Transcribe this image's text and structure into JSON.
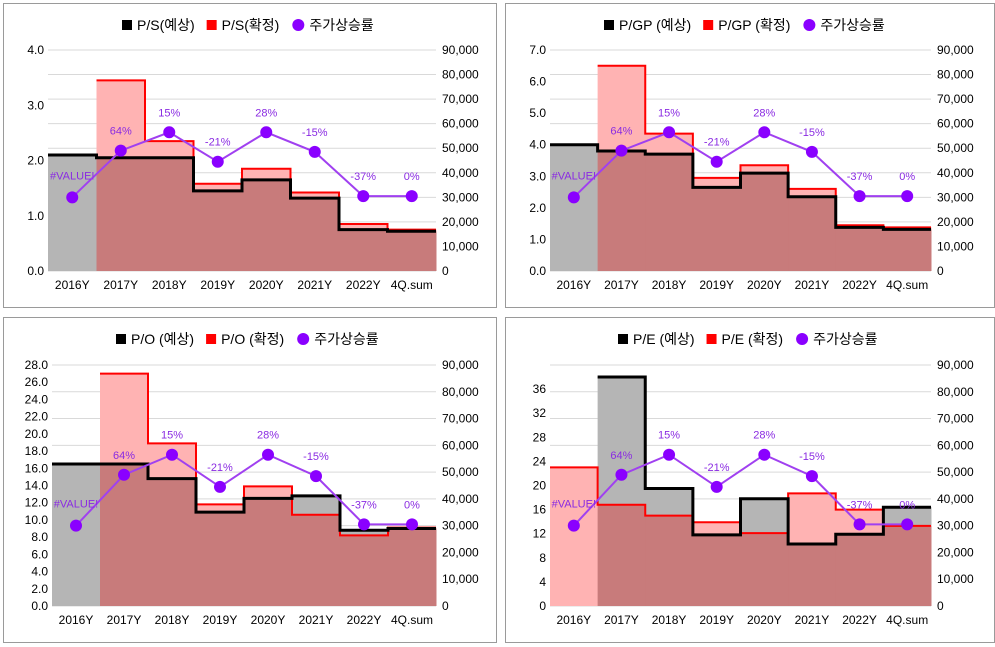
{
  "colors": {
    "estimate_fill": "#b5b5b5",
    "estimate_line": "#000000",
    "confirmed_fill": "#ffb3b3",
    "confirmed_line": "#ff0000",
    "overlap_fill": "#c87b7b",
    "price_line": "#a040f0",
    "price_marker": "#8a00ff",
    "grid": "#d9d9d9"
  },
  "chart_data": [
    {
      "type": "area",
      "legend": {
        "estimate": "P/S(예상)",
        "confirmed": "P/S(확정)",
        "price": "주가상승률"
      },
      "categories": [
        "2016Y",
        "2017Y",
        "2018Y",
        "2019Y",
        "2020Y",
        "2021Y",
        "2022Y",
        "4Q.sum"
      ],
      "series": [
        {
          "name": "P/S(예상)",
          "values": [
            2.1,
            2.05,
            2.05,
            1.45,
            1.65,
            1.32,
            0.75,
            0.72
          ]
        },
        {
          "name": "P/S(확정)",
          "values": [
            null,
            3.45,
            2.35,
            1.58,
            1.85,
            1.42,
            0.85,
            0.75
          ]
        },
        {
          "name": "주가상승률",
          "axis": "right",
          "values": [
            30000,
            49000,
            56500,
            44500,
            56500,
            48500,
            30500,
            30500
          ]
        }
      ],
      "data_labels": [
        "#VALUE!",
        "64%",
        "15%",
        "-21%",
        "28%",
        "-15%",
        "-37%",
        "0%"
      ],
      "ylim": [
        0,
        4.0
      ],
      "y_ticks": [
        "0.0",
        "1.0",
        "2.0",
        "3.0",
        "4.0"
      ],
      "y2lim": [
        0,
        90000
      ],
      "y2_ticks": [
        "0",
        "10,000",
        "20,000",
        "30,000",
        "40,000",
        "50,000",
        "60,000",
        "70,000",
        "80,000",
        "90,000"
      ],
      "grid": true,
      "legend_position": "top"
    },
    {
      "type": "area",
      "legend": {
        "estimate": "P/GP (예상)",
        "confirmed": "P/GP (확정)",
        "price": "주가상승률"
      },
      "categories": [
        "2016Y",
        "2017Y",
        "2018Y",
        "2019Y",
        "2020Y",
        "2021Y",
        "2022Y",
        "4Q.sum"
      ],
      "series": [
        {
          "name": "P/GP (예상)",
          "values": [
            4.0,
            3.8,
            3.7,
            2.65,
            3.1,
            2.35,
            1.38,
            1.32
          ]
        },
        {
          "name": "P/GP (확정)",
          "values": [
            null,
            6.5,
            4.35,
            2.95,
            3.35,
            2.6,
            1.45,
            1.38
          ]
        },
        {
          "name": "주가상승률",
          "axis": "right",
          "values": [
            30000,
            49000,
            56500,
            44500,
            56500,
            48500,
            30500,
            30500
          ]
        }
      ],
      "data_labels": [
        "#VALUE!",
        "64%",
        "15%",
        "-21%",
        "28%",
        "-15%",
        "-37%",
        "0%"
      ],
      "ylim": [
        0,
        7.0
      ],
      "y_ticks": [
        "0.0",
        "1.0",
        "2.0",
        "3.0",
        "4.0",
        "5.0",
        "6.0",
        "7.0"
      ],
      "y2lim": [
        0,
        90000
      ],
      "y2_ticks": [
        "0",
        "10,000",
        "20,000",
        "30,000",
        "40,000",
        "50,000",
        "60,000",
        "70,000",
        "80,000",
        "90,000"
      ],
      "grid": true,
      "legend_position": "top"
    },
    {
      "type": "area",
      "legend": {
        "estimate": "P/O (예상)",
        "confirmed": "P/O (확정)",
        "price": "주가상승률"
      },
      "categories": [
        "2016Y",
        "2017Y",
        "2018Y",
        "2019Y",
        "2020Y",
        "2021Y",
        "2022Y",
        "4Q.sum"
      ],
      "series": [
        {
          "name": "P/O (예상)",
          "values": [
            16.5,
            16.5,
            14.8,
            10.9,
            12.5,
            12.8,
            8.8,
            9.0
          ]
        },
        {
          "name": "P/O (확정)",
          "values": [
            null,
            27.0,
            18.9,
            11.8,
            13.9,
            10.6,
            8.2,
            9.1
          ]
        },
        {
          "name": "주가상승률",
          "axis": "right",
          "values": [
            30000,
            49000,
            56500,
            44500,
            56500,
            48500,
            30500,
            30500
          ]
        }
      ],
      "data_labels": [
        "#VALUE!",
        "64%",
        "15%",
        "-21%",
        "28%",
        "-15%",
        "-37%",
        "0%"
      ],
      "ylim": [
        0,
        28.0
      ],
      "y_ticks": [
        "0.0",
        "2.0",
        "4.0",
        "6.0",
        "8.0",
        "10.0",
        "12.0",
        "14.0",
        "16.0",
        "18.0",
        "20.0",
        "22.0",
        "24.0",
        "26.0",
        "28.0"
      ],
      "y2lim": [
        0,
        90000
      ],
      "y2_ticks": [
        "0",
        "10,000",
        "20,000",
        "30,000",
        "40,000",
        "50,000",
        "60,000",
        "70,000",
        "80,000",
        "90,000"
      ],
      "grid": true,
      "legend_position": "top"
    },
    {
      "type": "area",
      "legend": {
        "estimate": "P/E (예상)",
        "confirmed": "P/E (확정)",
        "price": "주가상승률"
      },
      "categories": [
        "2016Y",
        "2017Y",
        "2018Y",
        "2019Y",
        "2020Y",
        "2021Y",
        "2022Y",
        "4Q.sum"
      ],
      "series": [
        {
          "name": "P/E (예상)",
          "values": [
            null,
            38.0,
            19.5,
            11.8,
            17.8,
            10.3,
            11.9,
            16.4
          ]
        },
        {
          "name": "P/E (확정)",
          "values": [
            23.0,
            16.8,
            15.0,
            13.9,
            12.1,
            18.7,
            16.0,
            13.3
          ]
        },
        {
          "name": "주가상승률",
          "axis": "right",
          "values": [
            30000,
            49000,
            56500,
            44500,
            56500,
            48500,
            30500,
            30500
          ]
        }
      ],
      "data_labels": [
        "#VALUE!",
        "64%",
        "15%",
        "-21%",
        "28%",
        "-15%",
        "-37%",
        "0%"
      ],
      "ylim": [
        0,
        40
      ],
      "y_ticks": [
        "0",
        "4",
        "8",
        "12",
        "16",
        "20",
        "24",
        "28",
        "32",
        "36"
      ],
      "y2lim": [
        0,
        90000
      ],
      "y2_ticks": [
        "0",
        "10,000",
        "20,000",
        "30,000",
        "40,000",
        "50,000",
        "60,000",
        "70,000",
        "80,000",
        "90,000"
      ],
      "grid": true,
      "legend_position": "top"
    }
  ]
}
